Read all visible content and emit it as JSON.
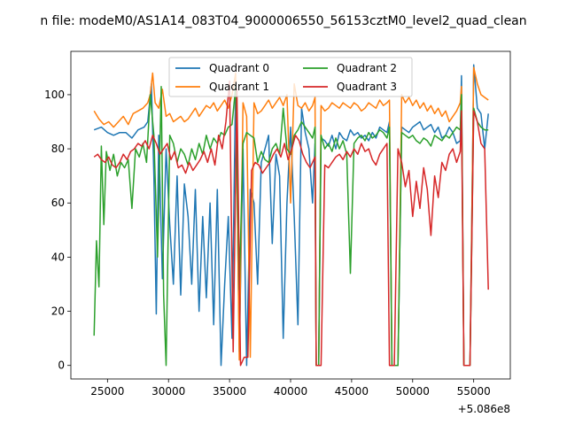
{
  "chart_data": {
    "type": "line",
    "title": "n file: modeM0/AS1A14_083T04_9000006550_56153cztM0_level2_quad_clean",
    "xlabel": "",
    "ylabel": "",
    "x_offset_label": "+5.086e8",
    "xlim": [
      22000,
      58000
    ],
    "ylim": [
      -5,
      116
    ],
    "xticks": [
      25000,
      30000,
      35000,
      40000,
      45000,
      50000,
      55000
    ],
    "xtick_labels": [
      "25000",
      "30000",
      "35000",
      "40000",
      "45000",
      "50000",
      "55000"
    ],
    "yticks": [
      0,
      20,
      40,
      60,
      80,
      100
    ],
    "ytick_labels": [
      "0",
      "20",
      "40",
      "60",
      "80",
      "100"
    ],
    "grid": false,
    "legend_position": "top-center",
    "series": [
      {
        "name": "Quadrant 0",
        "color": "#1f77b4",
        "x": [
          23900,
          24500,
          25000,
          25500,
          26000,
          26500,
          27000,
          27500,
          28000,
          28300,
          28600,
          28800,
          29000,
          29200,
          29500,
          29800,
          30100,
          30400,
          30700,
          31000,
          31300,
          31600,
          31900,
          32200,
          32500,
          32800,
          33100,
          33400,
          33700,
          34000,
          34300,
          34600,
          34900,
          35200,
          35500,
          35800,
          36100,
          36400,
          36700,
          37000,
          37300,
          37600,
          37900,
          38200,
          38500,
          38800,
          39100,
          39400,
          39700,
          40000,
          40300,
          40600,
          40900,
          41200,
          41500,
          41800,
          42000,
          42100,
          42300,
          42500,
          42800,
          43100,
          43400,
          43700,
          44000,
          44300,
          44600,
          44900,
          45200,
          45500,
          45800,
          46100,
          46400,
          46700,
          47000,
          47300,
          47600,
          47900,
          48100,
          48300,
          48500,
          48800,
          49100,
          49400,
          49700,
          50000,
          50300,
          50600,
          50900,
          51200,
          51500,
          51800,
          52100,
          52400,
          52700,
          53000,
          53300,
          53600,
          53900,
          54000,
          54200,
          54400,
          54700,
          55000,
          55300,
          55600,
          55900,
          56200
        ],
        "y": [
          87,
          88,
          86,
          85,
          86,
          86,
          84,
          87,
          88,
          90,
          104,
          70,
          19,
          85,
          32,
          80,
          52,
          30,
          70,
          26,
          67,
          55,
          30,
          65,
          20,
          55,
          25,
          60,
          15,
          65,
          0,
          30,
          55,
          10,
          105,
          5,
          80,
          0,
          65,
          60,
          30,
          75,
          80,
          85,
          45,
          78,
          70,
          10,
          60,
          88,
          55,
          15,
          95,
          86,
          80,
          60,
          82,
          0,
          0,
          84,
          83,
          81,
          85,
          80,
          86,
          84,
          83,
          87,
          85,
          86,
          84,
          85,
          83,
          86,
          84,
          88,
          87,
          86,
          90,
          0,
          0,
          0,
          88,
          87,
          86,
          88,
          89,
          90,
          87,
          88,
          89,
          86,
          88,
          84,
          85,
          88,
          86,
          82,
          83,
          107,
          0,
          0,
          0,
          111,
          95,
          93,
          80,
          93
        ]
      },
      {
        "name": "Quadrant 1",
        "color": "#ff7f0e",
        "x": [
          23900,
          24300,
          24700,
          25100,
          25500,
          25900,
          26300,
          26700,
          27100,
          27500,
          27900,
          28300,
          28500,
          28700,
          28900,
          29200,
          29500,
          29800,
          30100,
          30400,
          30700,
          31000,
          31300,
          31600,
          31900,
          32200,
          32500,
          32800,
          33100,
          33400,
          33700,
          34000,
          34300,
          34600,
          34900,
          35200,
          35500,
          35800,
          36100,
          36400,
          36700,
          37000,
          37300,
          37600,
          37900,
          38200,
          38500,
          38800,
          39100,
          39400,
          39700,
          40000,
          40300,
          40600,
          40900,
          41200,
          41500,
          41800,
          42000,
          42100,
          42300,
          42500,
          42800,
          43100,
          43400,
          43700,
          44000,
          44300,
          44600,
          44900,
          45200,
          45500,
          45800,
          46100,
          46400,
          46700,
          47000,
          47300,
          47600,
          47900,
          48100,
          48300,
          48500,
          48800,
          49100,
          49400,
          49700,
          50000,
          50300,
          50600,
          50900,
          51200,
          51500,
          51800,
          52100,
          52400,
          52700,
          53000,
          53300,
          53600,
          53900,
          54000,
          54200,
          54400,
          54700,
          55000,
          55300,
          55600,
          55900,
          56200
        ],
        "y": [
          94,
          91,
          89,
          90,
          88,
          90,
          92,
          89,
          93,
          94,
          95,
          97,
          100,
          108,
          97,
          95,
          102,
          92,
          93,
          90,
          91,
          92,
          90,
          91,
          93,
          95,
          92,
          94,
          96,
          95,
          97,
          94,
          96,
          98,
          95,
          100,
          108,
          2,
          97,
          92,
          3,
          97,
          93,
          94,
          96,
          98,
          95,
          97,
          99,
          96,
          100,
          60,
          104,
          96,
          95,
          97,
          94,
          96,
          99,
          0,
          0,
          96,
          94,
          95,
          97,
          96,
          95,
          97,
          96,
          95,
          97,
          96,
          94,
          95,
          97,
          96,
          95,
          98,
          96,
          97,
          98,
          0,
          0,
          0,
          100,
          97,
          99,
          96,
          98,
          95,
          97,
          94,
          96,
          93,
          95,
          92,
          94,
          90,
          92,
          94,
          97,
          103,
          0,
          0,
          0,
          110,
          104,
          100,
          99,
          98
        ]
      },
      {
        "name": "Quadrant 2",
        "color": "#2ca02c",
        "x": [
          23900,
          24100,
          24300,
          24500,
          24700,
          24900,
          25200,
          25500,
          25800,
          26100,
          26400,
          26700,
          27000,
          27300,
          27600,
          27900,
          28200,
          28500,
          28800,
          29100,
          29400,
          29600,
          29800,
          30100,
          30400,
          30700,
          31000,
          31300,
          31600,
          31900,
          32200,
          32500,
          32800,
          33100,
          33400,
          33700,
          34000,
          34300,
          34600,
          34900,
          35200,
          35500,
          35800,
          36100,
          36400,
          36700,
          37000,
          37300,
          37600,
          37900,
          38200,
          38500,
          38800,
          39100,
          39400,
          39700,
          40000,
          40300,
          40600,
          40900,
          41200,
          41500,
          41800,
          42000,
          42100,
          42300,
          42500,
          42800,
          43100,
          43400,
          43700,
          44000,
          44300,
          44600,
          44900,
          45200,
          45500,
          45800,
          46100,
          46400,
          46700,
          47000,
          47300,
          47600,
          47900,
          48100,
          48300,
          48500,
          48800,
          49100,
          49400,
          49700,
          50000,
          50300,
          50600,
          50900,
          51200,
          51500,
          51800,
          52100,
          52400,
          52700,
          53000,
          53300,
          53600,
          53900,
          54000,
          54200,
          54400,
          54700,
          55000,
          55300,
          55600,
          55900,
          56200
        ],
        "y": [
          11,
          46,
          29,
          81,
          52,
          79,
          72,
          78,
          70,
          75,
          73,
          76,
          58,
          80,
          77,
          82,
          75,
          100,
          85,
          40,
          103,
          26,
          0,
          85,
          82,
          75,
          80,
          78,
          74,
          80,
          76,
          82,
          78,
          85,
          80,
          84,
          82,
          86,
          85,
          88,
          89,
          103,
          28,
          82,
          86,
          85,
          84,
          75,
          79,
          76,
          75,
          80,
          82,
          78,
          95,
          80,
          78,
          85,
          87,
          90,
          88,
          86,
          84,
          88,
          0,
          0,
          85,
          80,
          82,
          79,
          84,
          80,
          83,
          78,
          34,
          82,
          84,
          85,
          83,
          86,
          84,
          85,
          87,
          86,
          84,
          88,
          0,
          0,
          0,
          86,
          85,
          84,
          85,
          83,
          82,
          84,
          83,
          81,
          85,
          84,
          83,
          85,
          84,
          86,
          88,
          87,
          100,
          0,
          0,
          0,
          95,
          90,
          88,
          87,
          87
        ]
      },
      {
        "name": "Quadrant 3",
        "color": "#d62728",
        "x": [
          23900,
          24200,
          24500,
          24800,
          25100,
          25400,
          25700,
          26000,
          26300,
          26600,
          26900,
          27200,
          27500,
          27800,
          28100,
          28400,
          28700,
          29000,
          29300,
          29600,
          29900,
          30200,
          30500,
          30800,
          31100,
          31400,
          31700,
          32000,
          32300,
          32600,
          32900,
          33200,
          33500,
          33800,
          34100,
          34400,
          34700,
          35000,
          35300,
          35600,
          35900,
          36200,
          36500,
          36800,
          37100,
          37400,
          37700,
          38000,
          38300,
          38600,
          38900,
          39200,
          39500,
          39800,
          40100,
          40400,
          40700,
          41000,
          41300,
          41600,
          41900,
          42000,
          42100,
          42300,
          42500,
          42800,
          43100,
          43400,
          43700,
          44000,
          44300,
          44600,
          44900,
          45200,
          45500,
          45800,
          46100,
          46400,
          46700,
          47000,
          47300,
          47600,
          47900,
          48100,
          48300,
          48500,
          48800,
          49100,
          49400,
          49700,
          50000,
          50300,
          50600,
          50900,
          51200,
          51500,
          51800,
          52100,
          52400,
          52700,
          53000,
          53300,
          53600,
          53900,
          54000,
          54200,
          54400,
          54700,
          55000,
          55300,
          55600,
          55900,
          56200
        ],
        "y": [
          77,
          78,
          76,
          75,
          77,
          74,
          73,
          75,
          78,
          76,
          79,
          80,
          82,
          81,
          83,
          80,
          85,
          82,
          78,
          80,
          82,
          76,
          79,
          73,
          74,
          71,
          75,
          72,
          74,
          76,
          79,
          75,
          80,
          74,
          85,
          80,
          90,
          105,
          5,
          102,
          0,
          3,
          3,
          72,
          75,
          74,
          71,
          73,
          75,
          78,
          80,
          77,
          82,
          76,
          80,
          85,
          83,
          78,
          75,
          73,
          76,
          77,
          0,
          0,
          0,
          74,
          73,
          75,
          77,
          78,
          76,
          79,
          77,
          80,
          78,
          82,
          79,
          80,
          76,
          74,
          78,
          80,
          82,
          0,
          0,
          0,
          80,
          75,
          66,
          72,
          55,
          68,
          58,
          73,
          65,
          48,
          70,
          62,
          75,
          72,
          78,
          80,
          75,
          79,
          94,
          0,
          0,
          0,
          94,
          90,
          82,
          80,
          28
        ]
      }
    ]
  }
}
